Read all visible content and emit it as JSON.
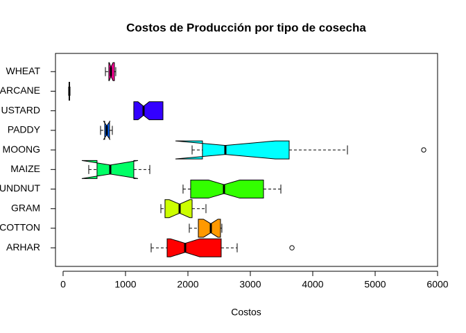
{
  "chart_data": {
    "type": "boxplot",
    "orientation": "horizontal",
    "notch": true,
    "title": "Costos de Producción por tipo de cosecha",
    "x_label": "Costos",
    "categories": [
      "ARHAR",
      "COTTON",
      "GRAM",
      "UNDNUT",
      "MAIZE",
      "MOONG",
      "PADDY",
      "USTARD",
      "ARCANE",
      "WHEAT"
    ],
    "colors": [
      "#FF0000",
      "#FF9900",
      "#CCFF00",
      "#33FF00",
      "#00FF66",
      "#00FFFF",
      "#0066FF",
      "#3300FF",
      "#CC00FF",
      "#FF0099"
    ],
    "boxes": [
      {
        "whisker_low": 1411,
        "q1": 1667,
        "notch_low": 1720,
        "median": 1956,
        "notch_high": 2190,
        "q3": 2533,
        "whisker_high": 2789,
        "outliers": [
          3667
        ]
      },
      {
        "whisker_low": 2022,
        "q1": 2167,
        "notch_low": 2250,
        "median": 2367,
        "notch_high": 2480,
        "q3": 2522,
        "whisker_high": 2544,
        "outliers": []
      },
      {
        "whisker_low": 1567,
        "q1": 1633,
        "notch_low": 1700,
        "median": 1867,
        "notch_high": 2030,
        "q3": 2067,
        "whisker_high": 2289,
        "outliers": []
      },
      {
        "whisker_low": 1922,
        "q1": 2044,
        "notch_low": 2330,
        "median": 2578,
        "notch_high": 2830,
        "q3": 3211,
        "whisker_high": 3489,
        "outliers": []
      },
      {
        "whisker_low": 411,
        "q1": 544,
        "notch_low": 300,
        "median": 756,
        "notch_high": 1200,
        "q3": 1133,
        "whisker_high": 1389,
        "outliers": []
      },
      {
        "whisker_low": 2067,
        "q1": 2233,
        "notch_low": 1800,
        "median": 2600,
        "notch_high": 3400,
        "q3": 3622,
        "whisker_high": 4556,
        "outliers": [
          5778
        ]
      },
      {
        "whisker_low": 600,
        "q1": 667,
        "notch_low": 650,
        "median": 700,
        "notch_high": 750,
        "q3": 744,
        "whisker_high": 789,
        "outliers": []
      },
      {
        "whisker_low": 1133,
        "q1": 1133,
        "notch_low": 1200,
        "median": 1289,
        "notch_high": 1380,
        "q3": 1600,
        "whisker_high": 1600,
        "outliers": []
      },
      {
        "whisker_low": 90,
        "q1": 95,
        "notch_low": 97,
        "median": 100,
        "notch_high": 103,
        "q3": 105,
        "whisker_high": 110,
        "outliers": []
      },
      {
        "whisker_low": 678,
        "q1": 733,
        "notch_low": 740,
        "median": 767,
        "notch_high": 800,
        "q3": 822,
        "whisker_high": 844,
        "outliers": []
      }
    ],
    "xlim": [
      -122,
      6000
    ],
    "xticks": [
      0,
      1000,
      2000,
      3000,
      4000,
      5000,
      6000
    ]
  }
}
